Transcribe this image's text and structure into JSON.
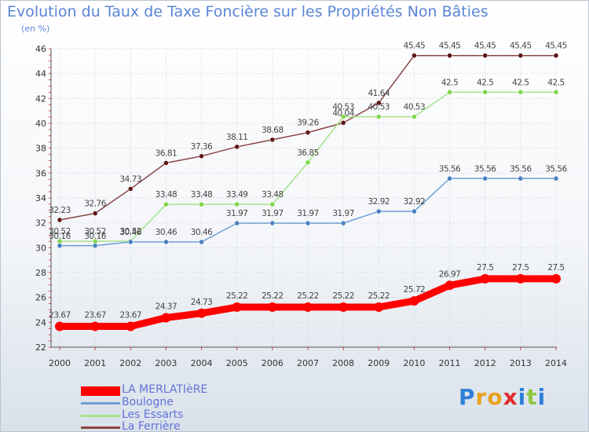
{
  "chart_data": {
    "type": "line",
    "title": "Evolution du Taux de Taxe Foncière sur les Propriétés Non Bâties",
    "unit_label": "(en %)",
    "xlabel": "",
    "ylabel": "",
    "x": [
      "2000",
      "2001",
      "2002",
      "2003",
      "2004",
      "2005",
      "2006",
      "2007",
      "2008",
      "2009",
      "2010",
      "2011",
      "2012",
      "2013",
      "2014"
    ],
    "ylim": [
      22,
      46
    ],
    "yticks": [
      22,
      24,
      26,
      28,
      30,
      32,
      34,
      36,
      38,
      40,
      42,
      44,
      46
    ],
    "grid": true,
    "legend_position": "bottom-left",
    "series": [
      {
        "name": "LA MERLATIèRE",
        "color": "#ff0000",
        "point_color": "#ff0000",
        "thick": true,
        "values": [
          23.67,
          23.67,
          23.67,
          24.37,
          24.73,
          25.22,
          25.22,
          25.22,
          25.22,
          25.22,
          25.72,
          26.97,
          27.5,
          27.5,
          27.5
        ],
        "labels": [
          "23.67",
          "23.67",
          "23.67",
          "24.37",
          "24.73",
          "25.22",
          "25.22",
          "25.22",
          "25.22",
          "25.22",
          "25.72",
          "26.97",
          "27.5",
          "27.5",
          "27.5"
        ]
      },
      {
        "name": "Boulogne",
        "color": "#6f9fd4",
        "point_color": "#4c7fbd",
        "thick": false,
        "values": [
          30.16,
          30.16,
          30.46,
          30.46,
          30.46,
          31.97,
          31.97,
          31.97,
          31.97,
          32.92,
          32.92,
          35.56,
          35.56,
          35.56,
          35.56
        ],
        "labels": [
          "30.16",
          "30.16",
          "30.46",
          "30.46",
          "30.46",
          "31.97",
          "31.97",
          "31.97",
          "31.97",
          "32.92",
          "32.92",
          "35.56",
          "35.56",
          "35.56",
          "35.56"
        ]
      },
      {
        "name": "Les Essarts",
        "color": "#a6e38a",
        "point_color": "#7fd64a",
        "thick": false,
        "values": [
          30.52,
          30.52,
          30.52,
          33.48,
          33.48,
          33.49,
          33.48,
          36.85,
          40.53,
          40.53,
          40.53,
          42.5,
          42.5,
          42.5,
          42.5
        ],
        "labels": [
          "30.52",
          "30.52",
          "30.52",
          "33.48",
          "33.48",
          "33.49",
          "33.48",
          "36.85",
          "40.53",
          "40.53",
          "40.53",
          "42.5",
          "42.5",
          "42.5",
          "42.5"
        ]
      },
      {
        "name": "La Ferrière",
        "color": "#8a4444",
        "point_color": "#5c1414",
        "thick": false,
        "values": [
          32.23,
          32.76,
          34.73,
          36.81,
          37.36,
          38.11,
          38.68,
          39.26,
          40.04,
          41.64,
          45.45,
          45.45,
          45.45,
          45.45,
          45.45
        ],
        "labels": [
          "32.23",
          "32.76",
          "34.73",
          "36.81",
          "37.36",
          "38.11",
          "38.68",
          "39.26",
          "40.04",
          "41.64",
          "45.45",
          "45.45",
          "45.45",
          "45.45",
          "45.45"
        ]
      }
    ]
  },
  "logo": {
    "letters": [
      "P",
      "r",
      "o",
      "x",
      "i",
      "t",
      "i"
    ],
    "colors": [
      "#2f7fd9",
      "#e8a21e",
      "#e8a21e",
      "#e22a2a",
      "#2f7fd9",
      "#8ec63f",
      "#2f7fd9"
    ]
  }
}
